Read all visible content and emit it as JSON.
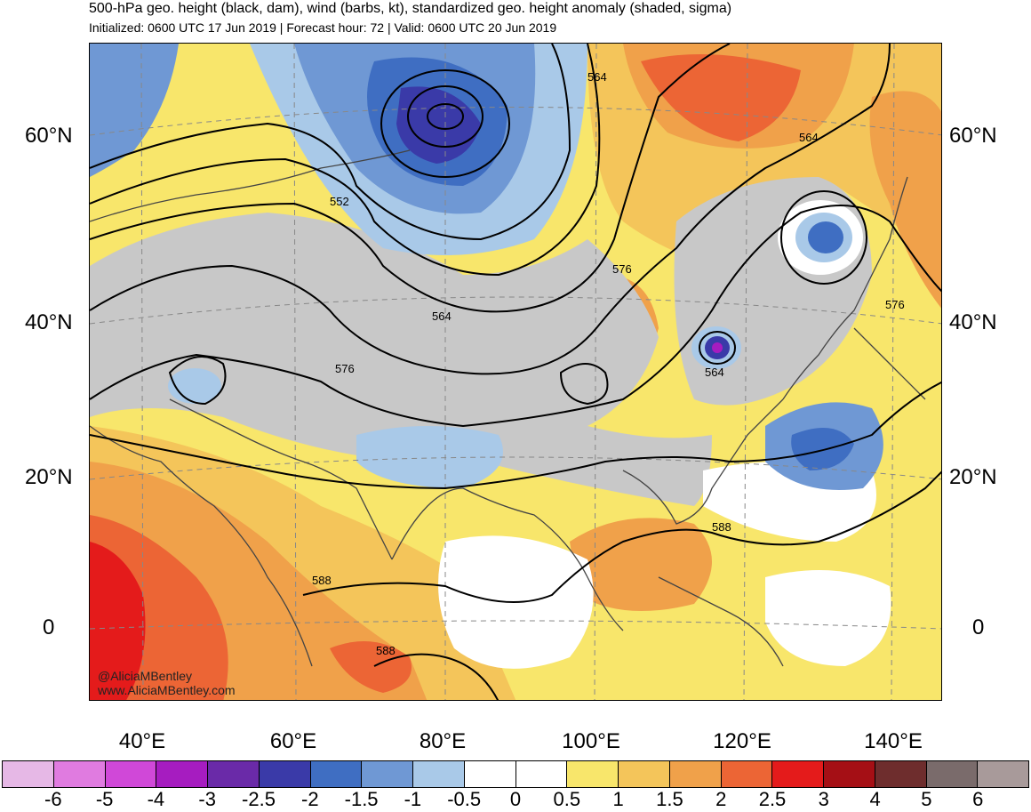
{
  "header": {
    "title": "500-hPa geo. height (black, dam), wind (barbs, kt), standardized geo. height anomaly (shaded, sigma)",
    "subtitle": "Initialized: 0600 UTC 17 Jun 2019 | Forecast hour: 72 | Valid: 0600 UTC 20 Jun 2019"
  },
  "map": {
    "lat_labels": [
      "60°N",
      "40°N",
      "20°N",
      "0"
    ],
    "lon_labels": [
      "40°E",
      "60°E",
      "80°E",
      "100°E",
      "120°E",
      "140°E"
    ],
    "contour_labels": [
      "564",
      "564",
      "552",
      "576",
      "564",
      "576",
      "564",
      "576",
      "588",
      "588",
      "588"
    ],
    "credit_handle": "@AliciaMBentley",
    "credit_url": "www.AliciaMBentley.com"
  },
  "colorbar": {
    "labels": [
      "-6",
      "-5",
      "-4",
      "-3",
      "-2.5",
      "-2",
      "-1.5",
      "-1",
      "-0.5",
      "0",
      "0.5",
      "1",
      "1.5",
      "2",
      "2.5",
      "3",
      "4",
      "5",
      "6"
    ],
    "colors": [
      "#e6b8e6",
      "#e07be0",
      "#d048d8",
      "#a61cc0",
      "#6a2aa8",
      "#3a3aa8",
      "#3f6ec2",
      "#6f98d4",
      "#a9c9e8",
      "#ffffff",
      "#ffffff",
      "#f8e66b",
      "#f4c55a",
      "#f0a14a",
      "#ec6535",
      "#e41b1b",
      "#a50f15",
      "#6e2d2d",
      "#7a6b6b",
      "#a89a9a"
    ]
  }
}
